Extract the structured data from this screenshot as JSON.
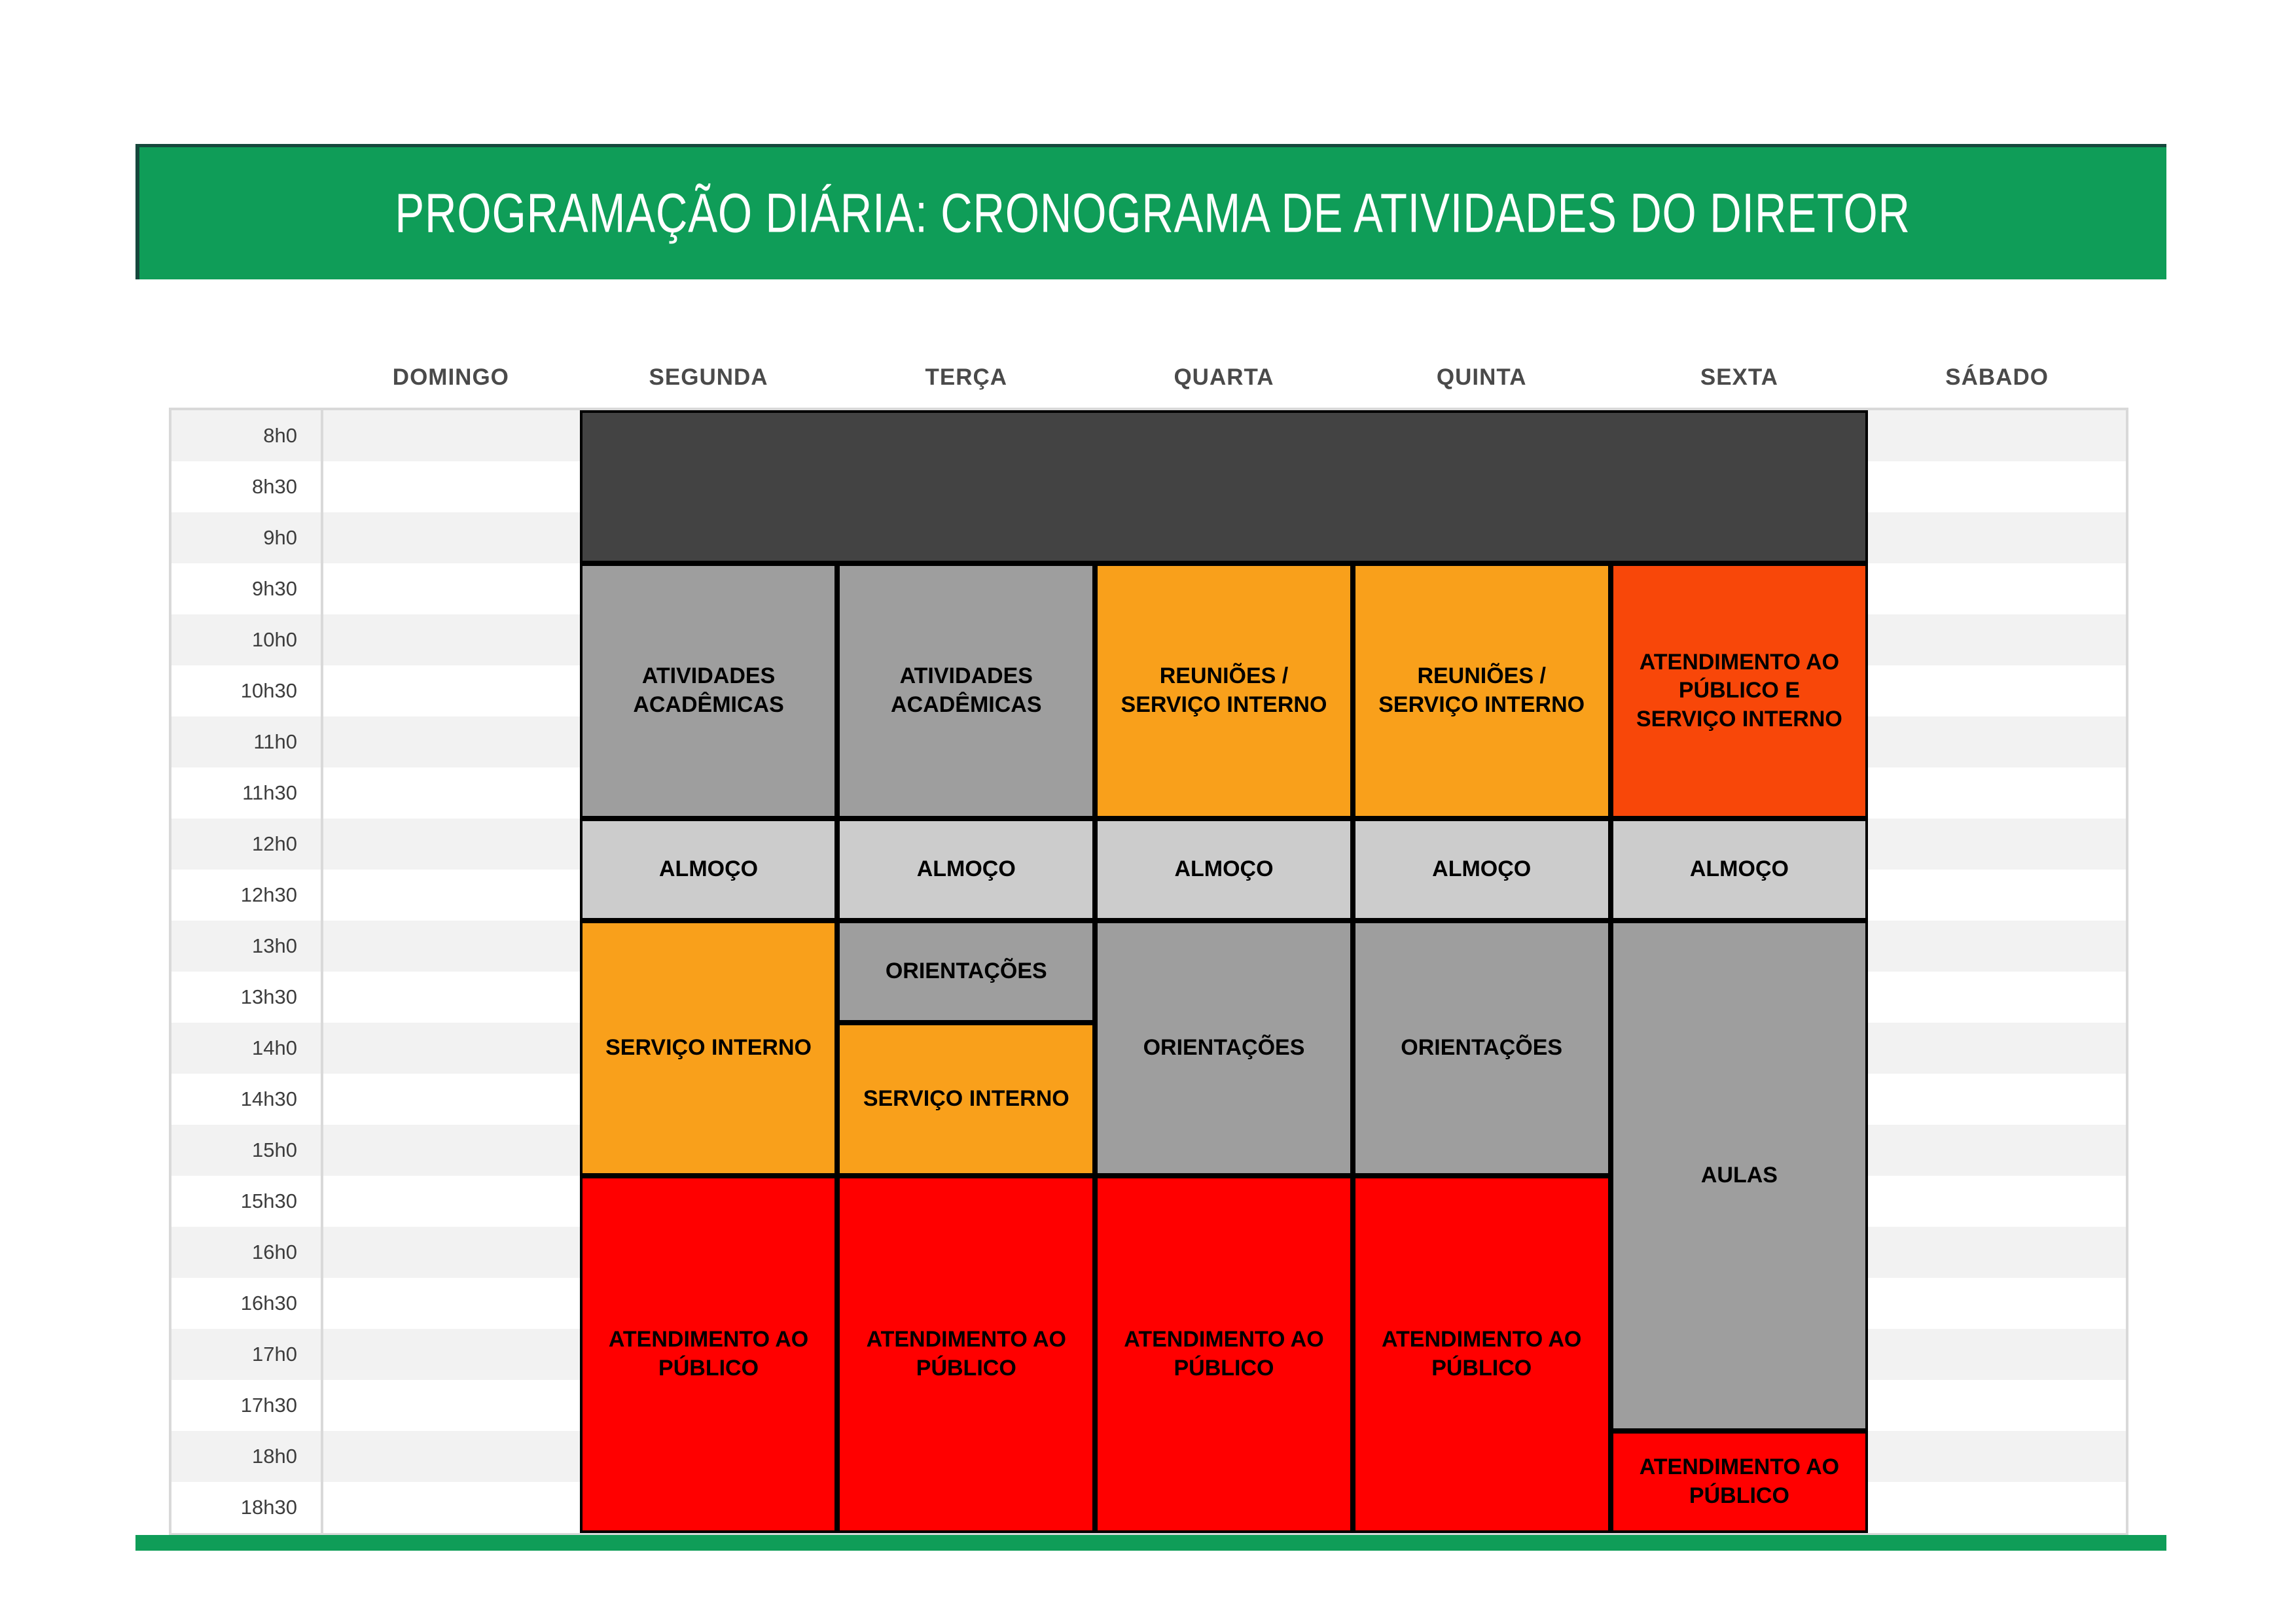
{
  "title": {
    "text": "PROGRAMAÇÃO DIÁRIA: CRONOGRAMA DE ATIVIDADES DO DIRETOR"
  },
  "colors": {
    "accent_green": "#0f9d58",
    "accent_green_dark": "#15483c",
    "dark_block": "#434343",
    "gray_block": "#9e9e9e",
    "lunch_gray": "#cccccc",
    "orange": "#f9a01b",
    "orange_red": "#f84709",
    "red": "#ff0000",
    "row_stripe": "#f2f2f2",
    "row_white": "#ffffff",
    "grid_line": "#d9d9d9",
    "header_text": "#4a4a4a",
    "time_text": "#3d3d3d",
    "block_border": "#000000",
    "title_text": "#ffffff"
  },
  "chart_data": {
    "type": "schedule",
    "title": "PROGRAMAÇÃO DIÁRIA: CRONOGRAMA DE ATIVIDADES DO DIRETOR",
    "days": [
      "DOMINGO",
      "SEGUNDA",
      "TERÇA",
      "QUARTA",
      "QUINTA",
      "SEXTA",
      "SÁBADO"
    ],
    "time_slots": [
      "8h0",
      "8h30",
      "9h0",
      "9h30",
      "10h0",
      "10h30",
      "11h0",
      "11h30",
      "12h0",
      "12h30",
      "13h0",
      "13h30",
      "14h0",
      "14h30",
      "15h0",
      "15h30",
      "16h0",
      "16h30",
      "17h0",
      "17h30",
      "18h0",
      "18h30"
    ],
    "blocks": [
      {
        "day_from": "SEGUNDA",
        "day_to": "SEXTA",
        "slot_from": "8h0",
        "slot_to": "9h0",
        "label": "",
        "color": "#434343"
      },
      {
        "day_from": "SEGUNDA",
        "day_to": "SEGUNDA",
        "slot_from": "9h30",
        "slot_to": "11h30",
        "label": "ATIVIDADES ACADÊMICAS",
        "color": "#9e9e9e"
      },
      {
        "day_from": "TERÇA",
        "day_to": "TERÇA",
        "slot_from": "9h30",
        "slot_to": "11h30",
        "label": "ATIVIDADES ACADÊMICAS",
        "color": "#9e9e9e"
      },
      {
        "day_from": "QUARTA",
        "day_to": "QUARTA",
        "slot_from": "9h30",
        "slot_to": "11h30",
        "label": "REUNIÕES / SERVIÇO INTERNO",
        "color": "#f9a01b"
      },
      {
        "day_from": "QUINTA",
        "day_to": "QUINTA",
        "slot_from": "9h30",
        "slot_to": "11h30",
        "label": "REUNIÕES / SERVIÇO INTERNO",
        "color": "#f9a01b"
      },
      {
        "day_from": "SEXTA",
        "day_to": "SEXTA",
        "slot_from": "9h30",
        "slot_to": "11h30",
        "label": "ATENDIMENTO AO PÚBLICO E SERVIÇO INTERNO",
        "color": "#f84709"
      },
      {
        "day_from": "SEGUNDA",
        "day_to": "SEGUNDA",
        "slot_from": "12h0",
        "slot_to": "12h30",
        "label": "ALMOÇO",
        "color": "#cccccc"
      },
      {
        "day_from": "TERÇA",
        "day_to": "TERÇA",
        "slot_from": "12h0",
        "slot_to": "12h30",
        "label": "ALMOÇO",
        "color": "#cccccc"
      },
      {
        "day_from": "QUARTA",
        "day_to": "QUARTA",
        "slot_from": "12h0",
        "slot_to": "12h30",
        "label": "ALMOÇO",
        "color": "#cccccc"
      },
      {
        "day_from": "QUINTA",
        "day_to": "QUINTA",
        "slot_from": "12h0",
        "slot_to": "12h30",
        "label": "ALMOÇO",
        "color": "#cccccc"
      },
      {
        "day_from": "SEXTA",
        "day_to": "SEXTA",
        "slot_from": "12h0",
        "slot_to": "12h30",
        "label": "ALMOÇO",
        "color": "#cccccc"
      },
      {
        "day_from": "SEGUNDA",
        "day_to": "SEGUNDA",
        "slot_from": "13h0",
        "slot_to": "15h0",
        "label": "SERVIÇO INTERNO",
        "color": "#f9a01b"
      },
      {
        "day_from": "TERÇA",
        "day_to": "TERÇA",
        "slot_from": "13h0",
        "slot_to": "13h30",
        "label": "ORIENTAÇÕES",
        "color": "#9e9e9e"
      },
      {
        "day_from": "TERÇA",
        "day_to": "TERÇA",
        "slot_from": "14h0",
        "slot_to": "15h0",
        "label": "SERVIÇO INTERNO",
        "color": "#f9a01b"
      },
      {
        "day_from": "QUARTA",
        "day_to": "QUARTA",
        "slot_from": "13h0",
        "slot_to": "15h0",
        "label": "ORIENTAÇÕES",
        "color": "#9e9e9e"
      },
      {
        "day_from": "QUINTA",
        "day_to": "QUINTA",
        "slot_from": "13h0",
        "slot_to": "15h0",
        "label": "ORIENTAÇÕES",
        "color": "#9e9e9e"
      },
      {
        "day_from": "SEXTA",
        "day_to": "SEXTA",
        "slot_from": "13h0",
        "slot_to": "17h30",
        "label": "AULAS",
        "color": "#9e9e9e"
      },
      {
        "day_from": "SEGUNDA",
        "day_to": "SEGUNDA",
        "slot_from": "15h30",
        "slot_to": "18h30",
        "label": "ATENDIMENTO AO PÚBLICO",
        "color": "#ff0000"
      },
      {
        "day_from": "TERÇA",
        "day_to": "TERÇA",
        "slot_from": "15h30",
        "slot_to": "18h30",
        "label": "ATENDIMENTO AO PÚBLICO",
        "color": "#ff0000"
      },
      {
        "day_from": "QUARTA",
        "day_to": "QUARTA",
        "slot_from": "15h30",
        "slot_to": "18h30",
        "label": "ATENDIMENTO AO PÚBLICO",
        "color": "#ff0000"
      },
      {
        "day_from": "QUINTA",
        "day_to": "QUINTA",
        "slot_from": "15h30",
        "slot_to": "18h30",
        "label": "ATENDIMENTO AO PÚBLICO",
        "color": "#ff0000"
      },
      {
        "day_from": "SEXTA",
        "day_to": "SEXTA",
        "slot_from": "18h0",
        "slot_to": "18h30",
        "label": "ATENDIMENTO AO PÚBLICO",
        "color": "#ff0000"
      }
    ]
  }
}
